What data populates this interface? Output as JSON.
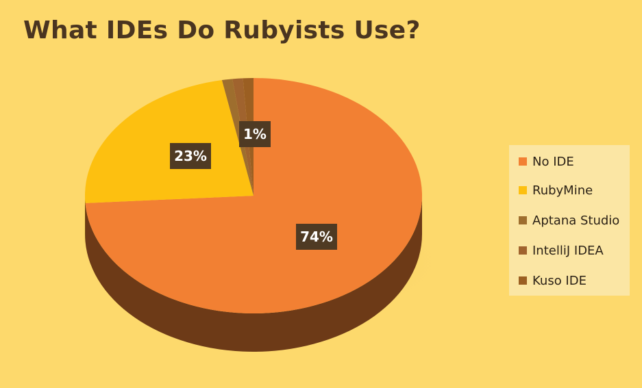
{
  "chart_data": {
    "type": "pie",
    "title": "What IDEs Do Rubyists Use?",
    "categories": [
      "No IDE",
      "RubyMine",
      "Aptana Studio",
      "IntelliJ IDEA",
      "Kuso IDE"
    ],
    "values": [
      74,
      23,
      1,
      1,
      1
    ],
    "data_labels": [
      "74%",
      "23%",
      "",
      "1%",
      ""
    ],
    "colors": [
      "#f28033",
      "#fdc010",
      "#9e6e2e",
      "#a0632e",
      "#9b5f22"
    ],
    "legend_placement": "right"
  }
}
